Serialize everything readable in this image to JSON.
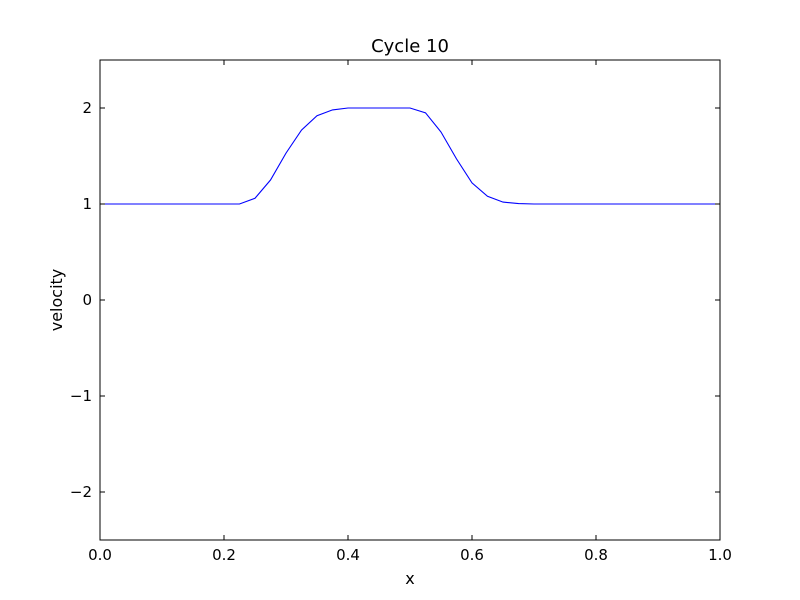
{
  "chart_data": {
    "type": "line",
    "title": "Cycle 10",
    "xlabel": "x",
    "ylabel": "velocity",
    "xlim": [
      0.0,
      1.0
    ],
    "ylim": [
      -2.5,
      2.5
    ],
    "xticks": [
      0.0,
      0.2,
      0.4,
      0.6,
      0.8,
      1.0
    ],
    "xtick_labels": [
      "0.0",
      "0.2",
      "0.4",
      "0.6",
      "0.8",
      "1.0"
    ],
    "yticks": [
      -2,
      -1,
      0,
      1,
      2
    ],
    "ytick_labels": [
      "−2",
      "−1",
      "0",
      "1",
      "2"
    ],
    "grid": false,
    "legend": "none",
    "series": [
      {
        "color": "#0000ff",
        "x": [
          0.0,
          0.025,
          0.05,
          0.075,
          0.1,
          0.125,
          0.15,
          0.175,
          0.2,
          0.225,
          0.25,
          0.275,
          0.3,
          0.325,
          0.35,
          0.375,
          0.4,
          0.425,
          0.45,
          0.475,
          0.5,
          0.525,
          0.55,
          0.575,
          0.6,
          0.625,
          0.65,
          0.675,
          0.7,
          0.725,
          0.75,
          0.775,
          0.8,
          0.825,
          0.85,
          0.875,
          0.9,
          0.925,
          0.95,
          0.975,
          1.0
        ],
        "y": [
          1.0,
          1.0,
          1.0,
          1.0,
          1.0,
          1.0,
          1.0,
          1.0,
          1.0,
          1.0,
          1.06,
          1.25,
          1.53,
          1.77,
          1.92,
          1.98,
          2.0,
          2.0,
          2.0,
          2.0,
          2.0,
          1.95,
          1.75,
          1.47,
          1.22,
          1.08,
          1.02,
          1.005,
          1.0,
          1.0,
          1.0,
          1.0,
          1.0,
          1.0,
          1.0,
          1.0,
          1.0,
          1.0,
          1.0,
          1.0,
          1.0
        ]
      }
    ]
  }
}
